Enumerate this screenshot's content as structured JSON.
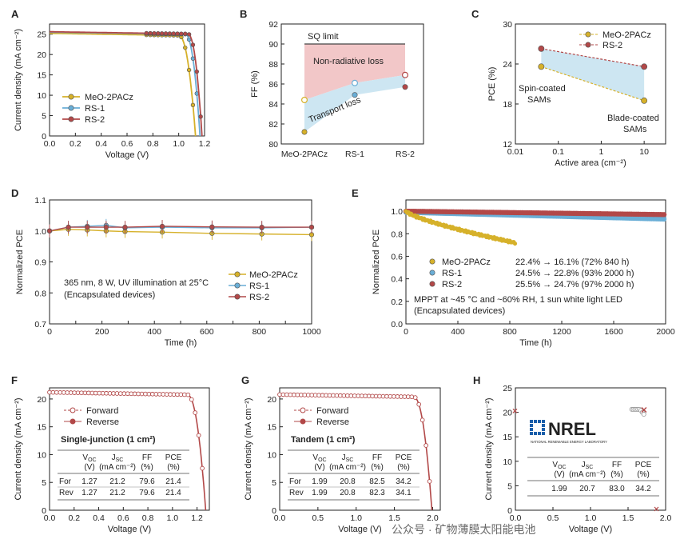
{
  "panels": [
    {
      "id": "A",
      "label": "A",
      "type": "line",
      "xlabel": "Voltage (V)",
      "ylabel": "Current density (mA cm⁻²)",
      "xlim": [
        0,
        1.2
      ],
      "ylim": [
        0,
        27.5
      ],
      "xticks": [
        "0.0",
        "0.2",
        "0.4",
        "0.6",
        "0.8",
        "1.0",
        "1.2"
      ],
      "yticks": [
        "0",
        "5",
        "10",
        "15",
        "20",
        "25"
      ],
      "series": [
        {
          "name": "MeO-2PACz",
          "color": "#d6b12a",
          "jsc": 25.2,
          "voc": 1.13,
          "knee": 1.0
        },
        {
          "name": "RS-1",
          "color": "#6aaed6",
          "jsc": 25.5,
          "voc": 1.165,
          "knee": 1.05
        },
        {
          "name": "RS-2",
          "color": "#b24848",
          "jsc": 25.6,
          "voc": 1.18,
          "knee": 1.07
        }
      ]
    },
    {
      "id": "B",
      "label": "B",
      "type": "line",
      "ylabel": "FF (%)",
      "ylim": [
        80,
        92
      ],
      "yticks": [
        "80",
        "82",
        "84",
        "86",
        "88",
        "90",
        "92"
      ],
      "categories": [
        "MeO-2PACz",
        "RS-1",
        "RS-2"
      ],
      "series": [
        {
          "name": "upper",
          "values": [
            84.4,
            86.1,
            86.9
          ]
        },
        {
          "name": "lower",
          "values": [
            81.2,
            84.9,
            85.7
          ]
        }
      ],
      "sq_limit": 90.0,
      "sq_label": "SQ limit",
      "region1": "Non-radiative loss",
      "region2": "Transport loss"
    },
    {
      "id": "C",
      "label": "C",
      "type": "line",
      "xlabel": "Active area (cm⁻²)",
      "ylabel": "PCE (%)",
      "ylim": [
        12,
        30
      ],
      "yticks": [
        "12",
        "18",
        "24",
        "30"
      ],
      "xticks": [
        "0.01",
        "0.1",
        "1",
        "10"
      ],
      "x": [
        0.04,
        10
      ],
      "series": [
        {
          "name": "MeO-2PACz",
          "color": "#d6b12a",
          "values": [
            23.6,
            18.5
          ]
        },
        {
          "name": "RS-2",
          "color": "#b24848",
          "values": [
            26.3,
            23.6
          ]
        }
      ],
      "note_left": [
        "Spin-coated",
        "SAMs"
      ],
      "note_right": [
        "Blade-coated",
        "SAMs"
      ]
    },
    {
      "id": "D",
      "label": "D",
      "type": "line",
      "xlabel": "Time (h)",
      "ylabel": "Normalized PCE",
      "xlim": [
        0,
        1000
      ],
      "ylim": [
        0.7,
        1.1
      ],
      "xticks": [
        "0",
        "100",
        "200",
        "300",
        "400",
        "500",
        "600",
        "700",
        "800",
        "900",
        "1000"
      ],
      "yticks": [
        "0.7",
        "0.8",
        "0.9",
        "1.0",
        "1.1"
      ],
      "x": [
        0,
        72,
        144,
        216,
        288,
        430,
        620,
        810,
        1000
      ],
      "series": [
        {
          "name": "MeO-2PACz",
          "color": "#d6b12a",
          "values": [
            1.0,
            1.005,
            1.003,
            1.0,
            0.998,
            0.996,
            0.992,
            0.99,
            0.988
          ]
        },
        {
          "name": "RS-1",
          "color": "#6aaed6",
          "values": [
            1.0,
            1.012,
            1.015,
            1.018,
            1.01,
            1.012,
            1.01,
            1.01,
            1.012
          ]
        },
        {
          "name": "RS-2",
          "color": "#b24848",
          "values": [
            1.0,
            1.012,
            1.012,
            1.012,
            1.012,
            1.015,
            1.013,
            1.012,
            1.012
          ]
        }
      ],
      "note": [
        "365 nm, 8 W, UV illumination at 25°C",
        "(Encapsulated devices)"
      ]
    },
    {
      "id": "E",
      "label": "E",
      "type": "scatter",
      "xlabel": "Time (h)",
      "ylabel": "Normalized PCE",
      "xlim": [
        0,
        2000
      ],
      "ylim": [
        0,
        1.1
      ],
      "xticks": [
        "0",
        "400",
        "800",
        "1200",
        "1600",
        "2000"
      ],
      "yticks": [
        "0.0",
        "0.2",
        "0.4",
        "0.6",
        "0.8",
        "1.0"
      ],
      "series": [
        {
          "name": "MeO-2PACz",
          "color": "#d6b12a",
          "end_x": 840,
          "end_y": 0.72,
          "text": "22.4% → 16.1% (72% 840 h)"
        },
        {
          "name": "RS-1",
          "color": "#6aaed6",
          "end_x": 2000,
          "end_y": 0.93,
          "text": "24.5% → 22.8% (93% 2000 h)"
        },
        {
          "name": "RS-2",
          "color": "#b24848",
          "end_x": 2000,
          "end_y": 0.97,
          "text": "25.5% → 24.7% (97% 2000 h)"
        }
      ],
      "note": [
        "MPPT at ~45 °C and ~60% RH, 1 sun white light LED",
        "(Encapsulated devices)"
      ]
    },
    {
      "id": "F",
      "label": "F",
      "type": "line",
      "xlabel": "Voltage (V)",
      "ylabel": "Current density (mA cm⁻²)",
      "xlim": [
        0,
        1.3
      ],
      "ylim": [
        0,
        22
      ],
      "xticks": [
        "0.0",
        "0.2",
        "0.4",
        "0.6",
        "0.8",
        "1.0",
        "1.2"
      ],
      "yticks": [
        "0",
        "5",
        "10",
        "15",
        "20"
      ],
      "jsc": 21.2,
      "voc": 1.27,
      "knee": 1.12,
      "legend": [
        "Forward",
        "Reverse"
      ],
      "title": "Single-junction  (1 cm²)",
      "table": {
        "headers": [
          [
            "V",
            "OC",
            "(V)"
          ],
          [
            "J",
            "SC",
            "(mA cm⁻²)"
          ],
          [
            "FF",
            "",
            "(%)"
          ],
          [
            "PCE",
            "",
            "(%)"
          ]
        ],
        "rows": [
          [
            "For",
            "1.27",
            "21.2",
            "79.6",
            "21.4"
          ],
          [
            "Rev",
            "1.27",
            "21.2",
            "79.6",
            "21.4"
          ]
        ]
      }
    },
    {
      "id": "G",
      "label": "G",
      "type": "line",
      "xlabel": "Voltage (V)",
      "ylabel": "Current density (mA cm⁻²)",
      "xlim": [
        0,
        2.1
      ],
      "ylim": [
        0,
        22
      ],
      "xticks": [
        "0.0",
        "0.5",
        "1.0",
        "1.5",
        "2.0"
      ],
      "yticks": [
        "0",
        "5",
        "10",
        "15",
        "20"
      ],
      "jsc": 20.8,
      "voc": 1.99,
      "knee": 1.75,
      "legend": [
        "Forward",
        "Reverse"
      ],
      "title": "Tandem  (1 cm²)",
      "table": {
        "headers": [
          [
            "V",
            "OC",
            "(V)"
          ],
          [
            "J",
            "SC",
            "(mA cm⁻²)"
          ],
          [
            "FF",
            "",
            "(%)"
          ],
          [
            "PCE",
            "",
            "(%)"
          ]
        ],
        "rows": [
          [
            "For",
            "1.99",
            "20.8",
            "82.5",
            "34.2"
          ],
          [
            "Rev",
            "1.99",
            "20.8",
            "82.3",
            "34.1"
          ]
        ]
      }
    },
    {
      "id": "H",
      "label": "H",
      "type": "scatter",
      "xlabel": "Voltage (V)",
      "ylabel": "Current density (mA cm⁻²)",
      "xlim": [
        0,
        2.0
      ],
      "ylim": [
        0,
        25
      ],
      "xticks": [
        "0.0",
        "0.5",
        "1.0",
        "1.5",
        "2.0"
      ],
      "yticks": [
        "0",
        "5",
        "10",
        "15",
        "20",
        "25"
      ],
      "logo": "NREL",
      "logo_sub": "NATIONAL RENEWABLE ENERGY LABORATORY",
      "table": {
        "headers": [
          [
            "V",
            "OC",
            "(V)"
          ],
          [
            "J",
            "SC",
            "(mA cm⁻²)"
          ],
          [
            "FF",
            "",
            "(%)"
          ],
          [
            "PCE",
            "",
            "(%)"
          ]
        ],
        "rows": [
          [
            "",
            "1.99",
            "20.7",
            "83.0",
            "34.2"
          ]
        ]
      }
    }
  ],
  "watermark": "公众号 · 矿物薄膜太阳能电池"
}
